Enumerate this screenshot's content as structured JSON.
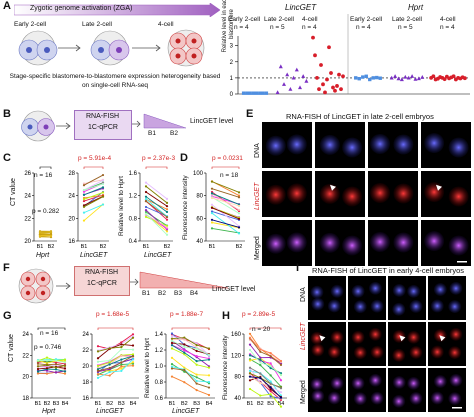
{
  "panels": {
    "A": "A",
    "B": "B",
    "C": "C",
    "D": "D",
    "E": "E",
    "F": "F",
    "G": "G",
    "H": "H",
    "I": "I"
  },
  "zga": {
    "title": "Zygotic genome activation (ZGA)",
    "stages": [
      "Early 2-cell",
      "Late 2-cell",
      "4-cell"
    ],
    "caption": "Stage-specific blastomere-to-blastomere expression heterogeneity based on single-cell RNA-seq"
  },
  "dotplots": {
    "ylabel": "Relative level in each blastomere",
    "yticks": [
      "0",
      "1",
      "2",
      "3"
    ],
    "lincget": {
      "gene": "LincGET",
      "groups": [
        {
          "name": "Early 2-cell",
          "n": "n = 4",
          "values": [
            0.05,
            0.05,
            0.05,
            0.05,
            0.05,
            0.05,
            0.05,
            0.05
          ]
        },
        {
          "name": "Late 2-cell",
          "n": "n = 5",
          "values": [
            0.1,
            1.7,
            0.6,
            1.2,
            0.3,
            1.0,
            1.5,
            0.4,
            1.1,
            0.8
          ]
        },
        {
          "name": "4-cell",
          "n": "n = 4",
          "values": [
            3.5,
            2.4,
            1.0,
            0.3,
            1.8,
            0.6,
            0.1,
            0.9,
            2.9,
            1.3,
            0.4,
            0.2,
            0.5,
            1.2,
            0.3,
            1.1
          ]
        }
      ]
    },
    "hprt": {
      "gene": "Hprt",
      "groups": [
        {
          "name": "Early 2-cell",
          "n": "n = 4",
          "values": [
            1.0,
            0.95,
            1.05,
            1.1,
            0.9,
            1.0,
            1.02,
            0.98
          ]
        },
        {
          "name": "Late 2-cell",
          "n": "n = 5",
          "values": [
            1.0,
            1.1,
            0.95,
            0.9,
            1.05,
            1.0,
            1.1,
            0.92,
            0.96,
            1.04
          ]
        },
        {
          "name": "4-cell",
          "n": "n = 4",
          "values": [
            1.0,
            1.1,
            0.9,
            0.95,
            1.05,
            1.0,
            0.92,
            1.08,
            0.97,
            1.03,
            1.1,
            0.9,
            1.0,
            0.96,
            1.04,
            0.98
          ]
        }
      ]
    }
  },
  "B": {
    "method_line1": "RNA-FISH",
    "method_line2": "1C-qPCR",
    "level_label": "LincGET level",
    "cells": [
      "B1",
      "B2"
    ]
  },
  "C": {
    "ylabel": "CT value",
    "hprt": {
      "n": "n = 16",
      "p": "p = 0.282",
      "gene": "Hprt",
      "yticks": [
        "20",
        "22",
        "24",
        "26"
      ]
    },
    "lincget": {
      "p": "p = 5.91e-4",
      "gene": "LincGET",
      "yticks": [
        "16",
        "20",
        "24",
        "28"
      ]
    },
    "ratio": {
      "ylabel": "Relative level to Hprt",
      "p": "p = 2.37e-3",
      "gene": "LincGET",
      "yticks": [
        "0.4",
        "0.8",
        "1.2",
        "1.6"
      ]
    },
    "xticks": [
      "B1",
      "B2"
    ]
  },
  "D": {
    "ylabel": "Fluorescence intensity",
    "p": "p = 0.0231",
    "n": "n = 18",
    "yticks": [
      "40",
      "60",
      "80",
      "100"
    ],
    "xticks": [
      "B1",
      "B2"
    ]
  },
  "E": {
    "title": "RNA-FISH of LincGET in late 2-cell embryos",
    "rows": [
      "DNA",
      "LincGET",
      "Merged"
    ]
  },
  "F": {
    "method_line1": "RNA-FISH",
    "method_line2": "1C-qPCR",
    "level_label": "LincGET level",
    "cells": [
      "B1",
      "B2",
      "B3",
      "B4"
    ]
  },
  "G": {
    "ylabel": "CT value",
    "hprt": {
      "n": "n = 16",
      "p": "p = 0.746",
      "gene": "Hprt",
      "yticks": [
        "18",
        "20",
        "22",
        "24"
      ]
    },
    "lincget": {
      "p": "p = 1.68e-5",
      "gene": "LincGET",
      "yticks": [
        "16",
        "18",
        "20",
        "22",
        "24"
      ]
    },
    "ratio": {
      "ylabel": "Relative level to Hprt",
      "p": "p = 1.88e-7",
      "gene": "LincGET",
      "yticks": [
        "0.6",
        "0.8",
        "1.0",
        "1.2",
        "1.4"
      ]
    },
    "xticks": [
      "B1",
      "B2",
      "B3",
      "B4"
    ]
  },
  "H": {
    "ylabel": "Fluorescence intensity",
    "p": "p = 2.89e-5",
    "n": "n = 20",
    "yticks": [
      "40",
      "80",
      "120",
      "160"
    ],
    "xticks": [
      "B1",
      "B2",
      "B3",
      "B4"
    ]
  },
  "I": {
    "title": "RNA-FISH of LincGET in early 4-cell embryos",
    "rows": [
      "DNA",
      "LincGET",
      "Merged"
    ]
  }
}
